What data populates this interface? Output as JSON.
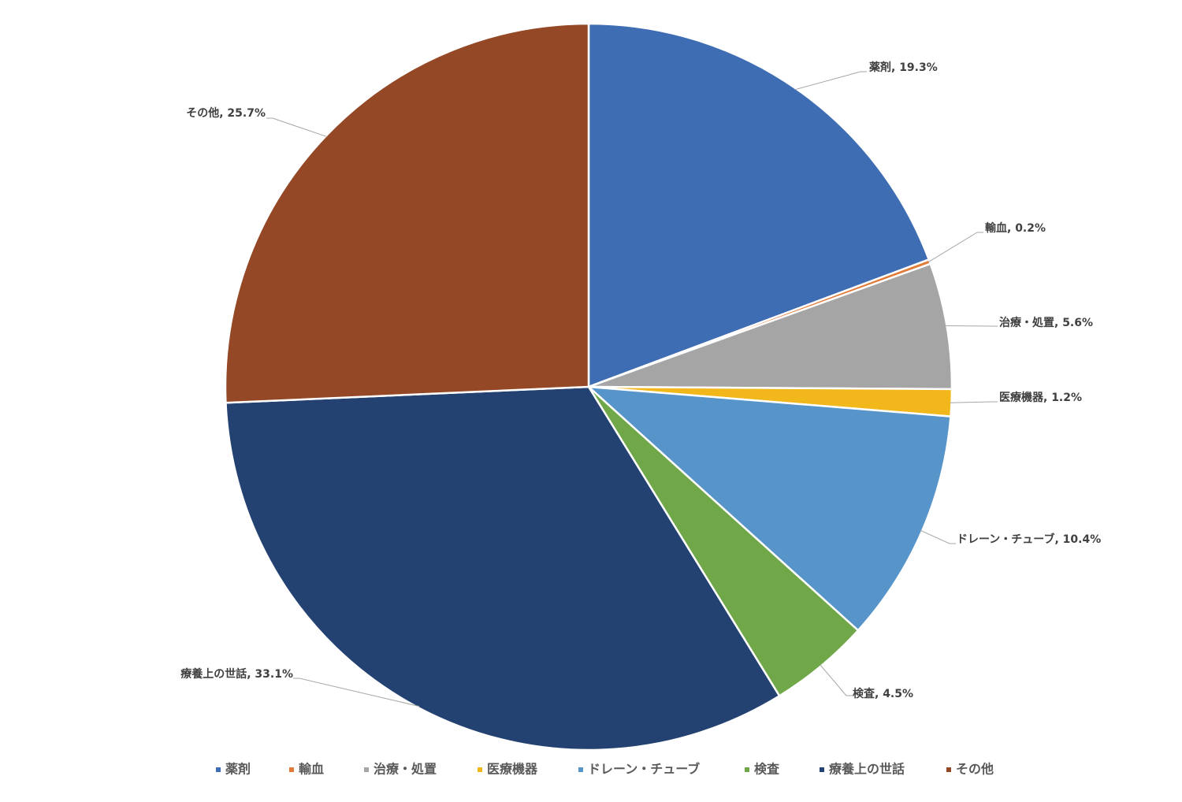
{
  "chart_data": {
    "type": "pie",
    "title": "",
    "categories": [
      "薬剤",
      "輸血",
      "治療・処置",
      "医療機器",
      "ドレーン・チューブ",
      "検査",
      "療養上の世話",
      "その他"
    ],
    "values": [
      19.3,
      0.2,
      5.6,
      1.2,
      10.4,
      4.5,
      33.1,
      25.7
    ],
    "value_labels": [
      "薬剤, 19.3%",
      "輸血, 0.2%",
      "治療・処置, 5.6%",
      "医療機器, 1.2%",
      "ドレーン・チューブ, 10.4%",
      "検査, 4.5%",
      "療養上の世話, 33.1%",
      "その他, 25.7%"
    ],
    "colors": [
      "#3F6DB3",
      "#E07B39",
      "#A5A5A5",
      "#F2B71B",
      "#5694C9",
      "#70A748",
      "#234272",
      "#944826"
    ],
    "start_angle_deg": 0,
    "direction": "clockwise",
    "legend_position": "bottom"
  }
}
